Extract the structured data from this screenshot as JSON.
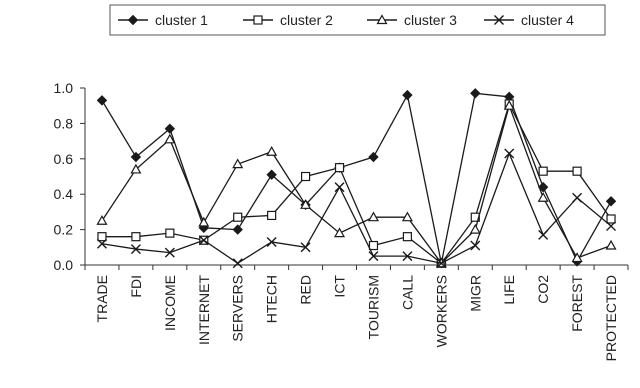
{
  "chart_data": {
    "type": "line",
    "title": "",
    "xlabel": "",
    "ylabel": "",
    "ylim": [
      0,
      1.0
    ],
    "yticks": [
      "0.0",
      "0.2",
      "0.4",
      "0.6",
      "0.8",
      "1.0"
    ],
    "grid": false,
    "legend_position": "top",
    "categories": [
      "TRADE",
      "FDI",
      "INCOME",
      "INTERNET",
      "SERVERS",
      "HTECH",
      "RED",
      "ICT",
      "TOURISM",
      "CALL",
      "WORKERS",
      "MIGR",
      "LIFE",
      "CO2",
      "FOREST",
      "PROTECTED"
    ],
    "series": [
      {
        "name": "cluster 1",
        "marker": "diamond-filled",
        "values": [
          0.93,
          0.61,
          0.77,
          0.21,
          0.2,
          0.51,
          0.34,
          0.55,
          0.61,
          0.96,
          0.01,
          0.97,
          0.95,
          0.44,
          0.02,
          0.36
        ]
      },
      {
        "name": "cluster 2",
        "marker": "square-open",
        "values": [
          0.16,
          0.16,
          0.18,
          0.14,
          0.27,
          0.28,
          0.5,
          0.55,
          0.11,
          0.16,
          0.01,
          0.27,
          0.91,
          0.53,
          0.53,
          0.26
        ]
      },
      {
        "name": "cluster 3",
        "marker": "triangle-open",
        "values": [
          0.25,
          0.54,
          0.71,
          0.24,
          0.57,
          0.64,
          0.34,
          0.18,
          0.27,
          0.27,
          0.01,
          0.2,
          0.9,
          0.38,
          0.04,
          0.11
        ]
      },
      {
        "name": "cluster 4",
        "marker": "x",
        "values": [
          0.12,
          0.09,
          0.07,
          0.14,
          0.01,
          0.13,
          0.1,
          0.44,
          0.05,
          0.05,
          0.01,
          0.11,
          0.63,
          0.17,
          0.38,
          0.22
        ]
      }
    ],
    "colors": {
      "line": "#1a1a1a"
    }
  }
}
